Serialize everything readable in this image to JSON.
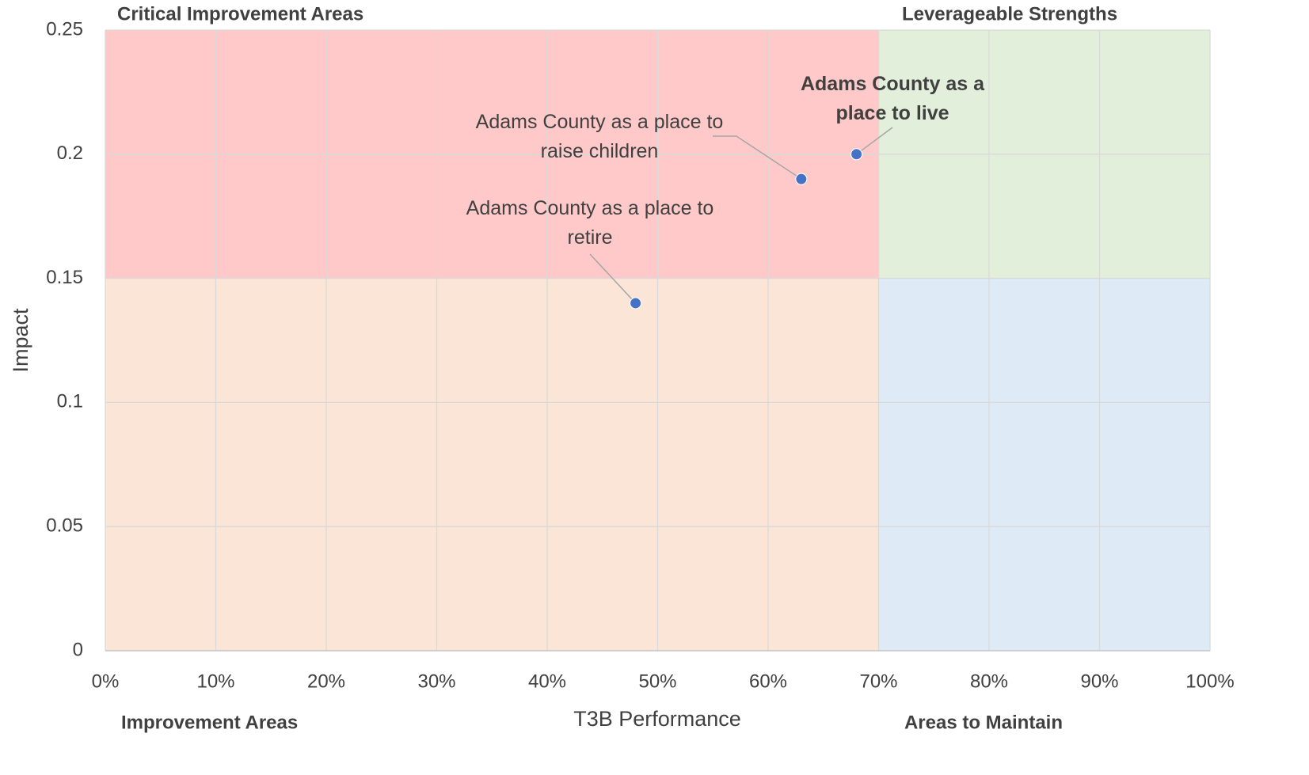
{
  "chart_data": {
    "type": "scatter",
    "x_label": "T3B Performance",
    "y_label": "Impact",
    "xlim": [
      0,
      100
    ],
    "xticks": [
      {
        "value": 0,
        "label": "0%"
      },
      {
        "value": 10,
        "label": "10%"
      },
      {
        "value": 20,
        "label": "20%"
      },
      {
        "value": 30,
        "label": "30%"
      },
      {
        "value": 40,
        "label": "40%"
      },
      {
        "value": 50,
        "label": "50%"
      },
      {
        "value": 60,
        "label": "60%"
      },
      {
        "value": 70,
        "label": "70%"
      },
      {
        "value": 80,
        "label": "80%"
      },
      {
        "value": 90,
        "label": "90%"
      },
      {
        "value": 100,
        "label": "100%"
      }
    ],
    "ylim": [
      0,
      0.25
    ],
    "yticks": [
      0,
      0.05,
      0.1,
      0.15,
      0.2,
      0.25
    ],
    "grid": true,
    "x_threshold": 70,
    "y_threshold": 0.15,
    "quadrants": {
      "top_left": {
        "label": "Critical Improvement Areas",
        "color": "#ff0000",
        "fill": "#ffc9c9"
      },
      "top_right": {
        "label": "Leverageable Strengths",
        "color": "#70ad47",
        "fill": "#e2efda"
      },
      "bottom_left": {
        "label": "Improvement Areas",
        "color": "#ed7d31",
        "fill": "#fbe5d6"
      },
      "bottom_right": {
        "label": "Areas to Maintain",
        "color": "#5b9bd5",
        "fill": "#deebf7"
      }
    },
    "color": "#4472c4",
    "x": [
      48,
      63,
      68
    ],
    "values": [
      0.14,
      0.19,
      0.2
    ],
    "point_labels": [
      "Adams County as a place to retire",
      "Adams County as a place to raise children",
      "Adams County as a place to live"
    ],
    "label_bold": [
      false,
      false,
      true
    ]
  }
}
